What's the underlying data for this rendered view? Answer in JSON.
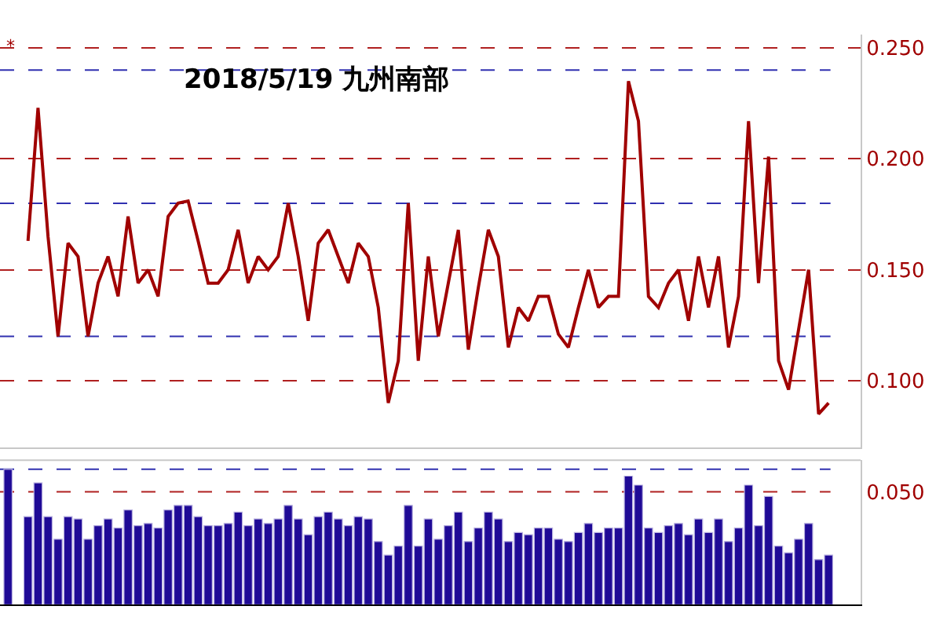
{
  "chart_data": [
    {
      "type": "line",
      "title": "2018/5/19 九州南部",
      "annotations": [
        "*"
      ],
      "categories": [
        null,
        null,
        null,
        null,
        null,
        null,
        null,
        null,
        null,
        null,
        null,
        null,
        null,
        null,
        null,
        null,
        null,
        null,
        null,
        null,
        null,
        null,
        null,
        null,
        null,
        null,
        null,
        null,
        null,
        null,
        null,
        null,
        null,
        null,
        null,
        null,
        null,
        null,
        null,
        null,
        null,
        null,
        null,
        null,
        null,
        null,
        null,
        null,
        null,
        null,
        null,
        null,
        null,
        null,
        null,
        null,
        null,
        null,
        null,
        null,
        null,
        null,
        null,
        null,
        null,
        null,
        null,
        null,
        null,
        null,
        null,
        null,
        null,
        null,
        null,
        null,
        null,
        null,
        null,
        null,
        null,
        null,
        null
      ],
      "series": [
        {
          "color": "#a00000",
          "values": [
            null,
            null,
            0.163,
            0.223,
            0.165,
            0.12,
            0.162,
            0.156,
            0.12,
            0.144,
            0.156,
            0.138,
            0.174,
            0.144,
            0.15,
            0.138,
            0.174,
            0.18,
            0.181,
            0.163,
            0.144,
            0.144,
            0.15,
            0.168,
            0.144,
            0.156,
            0.15,
            0.156,
            0.18,
            0.156,
            0.127,
            0.162,
            0.168,
            0.156,
            0.144,
            0.162,
            0.156,
            0.133,
            0.09,
            0.109,
            0.18,
            0.109,
            0.156,
            0.12,
            0.144,
            0.168,
            0.114,
            0.142,
            0.168,
            0.156,
            0.115,
            0.133,
            0.127,
            0.138,
            0.138,
            0.121,
            0.115,
            0.133,
            0.15,
            0.133,
            0.138,
            0.138,
            0.235,
            0.217,
            0.138,
            0.133,
            0.144,
            0.15,
            0.127,
            0.156,
            0.133,
            0.156,
            0.115,
            0.138,
            0.217,
            0.144,
            0.201,
            0.109,
            0.096,
            0.123,
            0.15,
            0.085,
            0.09
          ]
        }
      ],
      "ylim": [
        0.07,
        0.256
      ],
      "yticks": [
        {
          "value": 0.1,
          "label": "0.100"
        },
        {
          "value": 0.15,
          "label": "0.150"
        },
        {
          "value": 0.2,
          "label": "0.200"
        },
        {
          "value": 0.25,
          "label": "0.250"
        }
      ],
      "ref_lines": [
        {
          "axis": "y",
          "value": 0.24,
          "color": "#3030b0",
          "line_style": "dashed"
        },
        {
          "axis": "y",
          "value": 0.18,
          "color": "#3030b0",
          "line_style": "dashed"
        },
        {
          "axis": "y",
          "value": 0.12,
          "color": "#3030b0",
          "line_style": "dashed"
        }
      ],
      "grid": "y",
      "tick_labels": "y",
      "marker": "none",
      "line_style": "solid"
    },
    {
      "type": "bar",
      "categories": [
        null,
        null,
        null,
        null,
        null,
        null,
        null,
        null,
        null,
        null,
        null,
        null,
        null,
        null,
        null,
        null,
        null,
        null,
        null,
        null,
        null,
        null,
        null,
        null,
        null,
        null,
        null,
        null,
        null,
        null,
        null,
        null,
        null,
        null,
        null,
        null,
        null,
        null,
        null,
        null,
        null,
        null,
        null,
        null,
        null,
        null,
        null,
        null,
        null,
        null,
        null,
        null,
        null,
        null,
        null,
        null,
        null,
        null,
        null,
        null,
        null,
        null,
        null,
        null,
        null,
        null,
        null,
        null,
        null,
        null,
        null,
        null,
        null,
        null,
        null,
        null,
        null,
        null,
        null,
        null,
        null,
        null,
        null
      ],
      "series": [
        {
          "color": "#1f0a96",
          "values": [
            0.06,
            null,
            0.039,
            0.054,
            0.039,
            0.029,
            0.039,
            0.038,
            0.029,
            0.035,
            0.038,
            0.034,
            0.042,
            0.035,
            0.036,
            0.034,
            0.042,
            0.044,
            0.044,
            0.039,
            0.035,
            0.035,
            0.036,
            0.041,
            0.035,
            0.038,
            0.036,
            0.038,
            0.044,
            0.038,
            0.031,
            0.039,
            0.041,
            0.038,
            0.035,
            0.039,
            0.038,
            0.028,
            0.022,
            0.026,
            0.044,
            0.026,
            0.038,
            0.029,
            0.035,
            0.041,
            0.028,
            0.034,
            0.041,
            0.038,
            0.028,
            0.032,
            0.031,
            0.034,
            0.034,
            0.029,
            0.028,
            0.032,
            0.036,
            0.032,
            0.034,
            0.034,
            0.057,
            0.053,
            0.034,
            0.032,
            0.035,
            0.036,
            0.031,
            0.038,
            0.032,
            0.038,
            0.028,
            0.034,
            0.053,
            0.035,
            0.048,
            0.026,
            0.023,
            0.029,
            0.036,
            0.02,
            0.022
          ]
        }
      ],
      "ylim": [
        0,
        0.064
      ],
      "yticks": [
        {
          "value": 0,
          "label": null
        },
        {
          "value": 0.05,
          "label": "0.050"
        }
      ],
      "ref_lines": [
        {
          "axis": "y",
          "value": 0.06,
          "color": "#3030b0",
          "line_style": "dashed"
        },
        {
          "axis": "y",
          "value": 0.05,
          "color": "#b02020",
          "line_style": "dashed"
        }
      ],
      "tick_labels": "y"
    }
  ]
}
